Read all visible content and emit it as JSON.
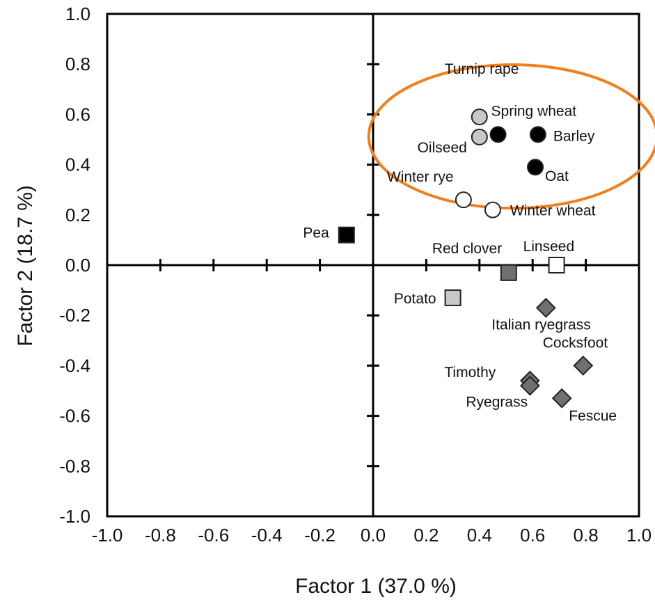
{
  "chart_data": {
    "type": "scatter",
    "xlabel": "Factor 1 (37.0 %)",
    "ylabel": "Factor 2 (18.7 %)",
    "xlim": [
      -1.0,
      1.0
    ],
    "ylim": [
      -1.0,
      1.0
    ],
    "x_ticks": [
      "-1.0",
      "-0.8",
      "-0.6",
      "-0.4",
      "-0.2",
      "0.0",
      "0.2",
      "0.4",
      "0.6",
      "0.8",
      "1.0"
    ],
    "y_ticks": [
      "1.0",
      "0.8",
      "0.6",
      "0.4",
      "0.2",
      "0.0",
      "-0.2",
      "-0.4",
      "-0.6",
      "-0.8",
      "-1.0"
    ],
    "grid": false,
    "points": [
      {
        "label": "Turnip rape",
        "x": 0.4,
        "y": 0.59,
        "marker": "circle",
        "fill": "#c8c8c8"
      },
      {
        "label": "Oilseed",
        "x": 0.4,
        "y": 0.51,
        "marker": "circle",
        "fill": "#c8c8c8"
      },
      {
        "label": "Spring wheat",
        "x": 0.47,
        "y": 0.52,
        "marker": "circle",
        "fill": "#000000"
      },
      {
        "label": "Barley",
        "x": 0.62,
        "y": 0.52,
        "marker": "circle",
        "fill": "#000000"
      },
      {
        "label": "Oat",
        "x": 0.61,
        "y": 0.39,
        "marker": "circle",
        "fill": "#000000"
      },
      {
        "label": "Winter rye",
        "x": 0.34,
        "y": 0.26,
        "marker": "circle",
        "fill": "#ffffff"
      },
      {
        "label": "Winter wheat",
        "x": 0.45,
        "y": 0.22,
        "marker": "circle",
        "fill": "#ffffff"
      },
      {
        "label": "Pea",
        "x": -0.1,
        "y": 0.12,
        "marker": "square",
        "fill": "#000000"
      },
      {
        "label": "Red clover",
        "x": 0.51,
        "y": -0.03,
        "marker": "square",
        "fill": "#707070"
      },
      {
        "label": "Linseed",
        "x": 0.69,
        "y": 0.0,
        "marker": "square",
        "fill": "#ffffff"
      },
      {
        "label": "Potato",
        "x": 0.3,
        "y": -0.13,
        "marker": "square",
        "fill": "#c8c8c8"
      },
      {
        "label": "Italian ryegrass",
        "x": 0.65,
        "y": -0.17,
        "marker": "diamond",
        "fill": "#707070"
      },
      {
        "label": "Cocksfoot",
        "x": 0.79,
        "y": -0.4,
        "marker": "diamond",
        "fill": "#707070"
      },
      {
        "label": "Timothy",
        "x": 0.59,
        "y": -0.46,
        "marker": "diamond",
        "fill": "#707070"
      },
      {
        "label": "Ryegrass",
        "x": 0.59,
        "y": -0.48,
        "marker": "diamond",
        "fill": "#707070"
      },
      {
        "label": "Fescue",
        "x": 0.71,
        "y": -0.53,
        "marker": "diamond",
        "fill": "#707070"
      }
    ],
    "annotations": [
      {
        "type": "ellipse",
        "stroke": "#f07f1c",
        "around": [
          "Turnip rape",
          "Spring wheat",
          "Oilseed",
          "Barley",
          "Oat"
        ]
      }
    ]
  }
}
